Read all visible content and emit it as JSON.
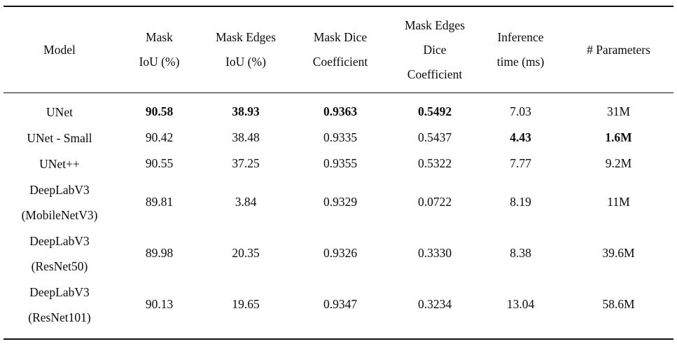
{
  "table": {
    "title": "segmentation-model-comparison",
    "header": [
      {
        "lines": [
          "Model"
        ]
      },
      {
        "lines": [
          "Mask",
          "IoU (%)"
        ]
      },
      {
        "lines": [
          "Mask Edges",
          "IoU (%)"
        ]
      },
      {
        "lines": [
          "Mask Dice",
          "Coefficient"
        ]
      },
      {
        "lines": [
          "Mask Edges",
          "Dice",
          "Coefficient"
        ]
      },
      {
        "lines": [
          "Inference",
          "time (ms)"
        ]
      },
      {
        "lines": [
          "# Parameters"
        ]
      }
    ],
    "rows": [
      {
        "model_lines": [
          "UNet"
        ],
        "cells": [
          {
            "value": "90.58",
            "bold": true
          },
          {
            "value": "38.93",
            "bold": true
          },
          {
            "value": "0.9363",
            "bold": true
          },
          {
            "value": "0.5492",
            "bold": true
          },
          {
            "value": "7.03",
            "bold": false
          },
          {
            "value": "31M",
            "bold": false
          }
        ]
      },
      {
        "model_lines": [
          "UNet - Small"
        ],
        "cells": [
          {
            "value": "90.42",
            "bold": false
          },
          {
            "value": "38.48",
            "bold": false
          },
          {
            "value": "0.9335",
            "bold": false
          },
          {
            "value": "0.5437",
            "bold": false
          },
          {
            "value": "4.43",
            "bold": true
          },
          {
            "value": "1.6M",
            "bold": true
          }
        ]
      },
      {
        "model_lines": [
          "UNet++"
        ],
        "cells": [
          {
            "value": "90.55",
            "bold": false
          },
          {
            "value": "37.25",
            "bold": false
          },
          {
            "value": "0.9355",
            "bold": false
          },
          {
            "value": "0.5322",
            "bold": false
          },
          {
            "value": "7.77",
            "bold": false
          },
          {
            "value": "9.2M",
            "bold": false
          }
        ]
      },
      {
        "model_lines": [
          "DeepLabV3",
          "(MobileNetV3)"
        ],
        "cells": [
          {
            "value": "89.81",
            "bold": false
          },
          {
            "value": "3.84",
            "bold": false
          },
          {
            "value": "0.9329",
            "bold": false
          },
          {
            "value": "0.0722",
            "bold": false
          },
          {
            "value": "8.19",
            "bold": false
          },
          {
            "value": "11M",
            "bold": false
          }
        ]
      },
      {
        "model_lines": [
          "DeepLabV3",
          "(ResNet50)"
        ],
        "cells": [
          {
            "value": "89.98",
            "bold": false
          },
          {
            "value": "20.35",
            "bold": false
          },
          {
            "value": "0.9326",
            "bold": false
          },
          {
            "value": "0.3330",
            "bold": false
          },
          {
            "value": "8.38",
            "bold": false
          },
          {
            "value": "39.6M",
            "bold": false
          }
        ]
      },
      {
        "model_lines": [
          "DeepLabV3",
          "(ResNet101)"
        ],
        "cells": [
          {
            "value": "90.13",
            "bold": false
          },
          {
            "value": "19.65",
            "bold": false
          },
          {
            "value": "0.9347",
            "bold": false
          },
          {
            "value": "0.3234",
            "bold": false
          },
          {
            "value": "13.04",
            "bold": false
          },
          {
            "value": "58.6M",
            "bold": false
          }
        ]
      }
    ],
    "colors": {
      "text": "#0b0b0b",
      "rule": "#111111",
      "background": "#ffffff"
    }
  }
}
